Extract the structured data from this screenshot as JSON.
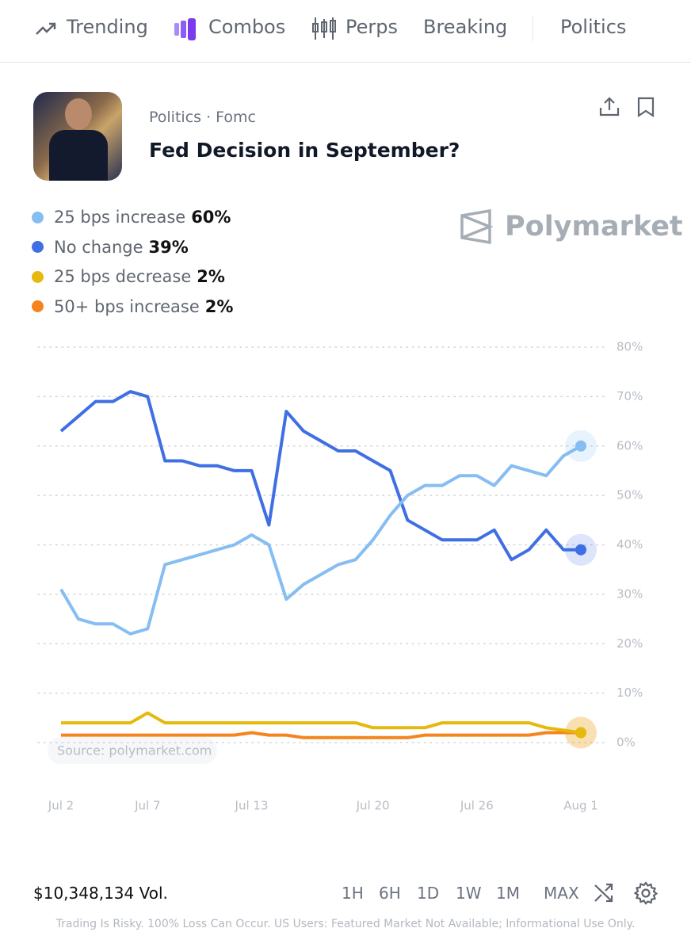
{
  "nav": {
    "items": [
      "Trending",
      "Combos",
      "Perps",
      "Breaking",
      "Politics"
    ]
  },
  "market": {
    "category": "Politics · Fomc",
    "title": "Fed Decision in September?",
    "brand": "Polymarket"
  },
  "chart_data": {
    "type": "line",
    "x": [
      "Jul 2",
      "Jul 3",
      "Jul 4",
      "Jul 5",
      "Jul 6",
      "Jul 7",
      "Jul 8",
      "Jul 9",
      "Jul 10",
      "Jul 11",
      "Jul 12",
      "Jul 13",
      "Jul 14",
      "Jul 15",
      "Jul 16",
      "Jul 17",
      "Jul 18",
      "Jul 19",
      "Jul 20",
      "Jul 21",
      "Jul 22",
      "Jul 23",
      "Jul 24",
      "Jul 25",
      "Jul 26",
      "Jul 27",
      "Jul 28",
      "Jul 29",
      "Jul 30",
      "Jul 31",
      "Aug 1"
    ],
    "xticks": [
      "Jul 2",
      "Jul 7",
      "Jul 13",
      "Jul 20",
      "Jul 26",
      "Aug 1"
    ],
    "ylim": [
      0,
      80
    ],
    "yticks": [
      {
        "value": 0,
        "label": "0%"
      },
      {
        "value": 10,
        "label": "10%"
      },
      {
        "value": 20,
        "label": "20%"
      },
      {
        "value": 30,
        "label": "30%"
      },
      {
        "value": 40,
        "label": "40%"
      },
      {
        "value": 50,
        "label": "50%"
      },
      {
        "value": 60,
        "label": "60%"
      },
      {
        "value": 70,
        "label": "70%"
      },
      {
        "value": 80,
        "label": "80%"
      }
    ],
    "grid": true,
    "source": "Source: polymarket.com",
    "series": [
      {
        "name": "25 bps increase",
        "current_label": "60%",
        "color": "#86bdf2",
        "values": [
          31,
          25,
          24,
          24,
          22,
          23,
          36,
          37,
          38,
          39,
          40,
          42,
          40,
          29,
          32,
          34,
          36,
          37,
          41,
          46,
          50,
          52,
          52,
          54,
          54,
          52,
          56,
          55,
          54,
          58,
          60
        ]
      },
      {
        "name": "No change",
        "current_label": "39%",
        "color": "#3f6fe2",
        "values": [
          63,
          66,
          69,
          69,
          71,
          70,
          57,
          57,
          56,
          56,
          55,
          55,
          44,
          67,
          63,
          61,
          59,
          59,
          57,
          55,
          45,
          43,
          41,
          41,
          41,
          43,
          37,
          39,
          43,
          39,
          39
        ]
      },
      {
        "name": "25 bps decrease",
        "current_label": "2%",
        "color": "#e6b90e",
        "values": [
          4,
          4,
          4,
          4,
          4,
          6,
          4,
          4,
          4,
          4,
          4,
          4,
          4,
          4,
          4,
          4,
          4,
          4,
          3,
          3,
          3,
          3,
          4,
          4,
          4,
          4,
          4,
          4,
          3,
          2.5,
          2
        ]
      },
      {
        "name": "50+ bps increase",
        "current_label": "2%",
        "color": "#f5841f",
        "values": [
          1.5,
          1.5,
          1.5,
          1.5,
          1.5,
          1.5,
          1.5,
          1.5,
          1.5,
          1.5,
          1.5,
          2,
          1.5,
          1.5,
          1,
          1,
          1,
          1,
          1,
          1,
          1,
          1.5,
          1.5,
          1.5,
          1.5,
          1.5,
          1.5,
          1.5,
          2,
          2,
          2
        ]
      }
    ]
  },
  "footer": {
    "volume": "$10,348,134 Vol.",
    "ranges": [
      "1H",
      "6H",
      "1D",
      "1W",
      "1M",
      "MAX"
    ],
    "disclaimer": "Trading Is Risky. 100% Loss Can Occur. US Users: Featured Market Not Available; Informational Use Only."
  }
}
